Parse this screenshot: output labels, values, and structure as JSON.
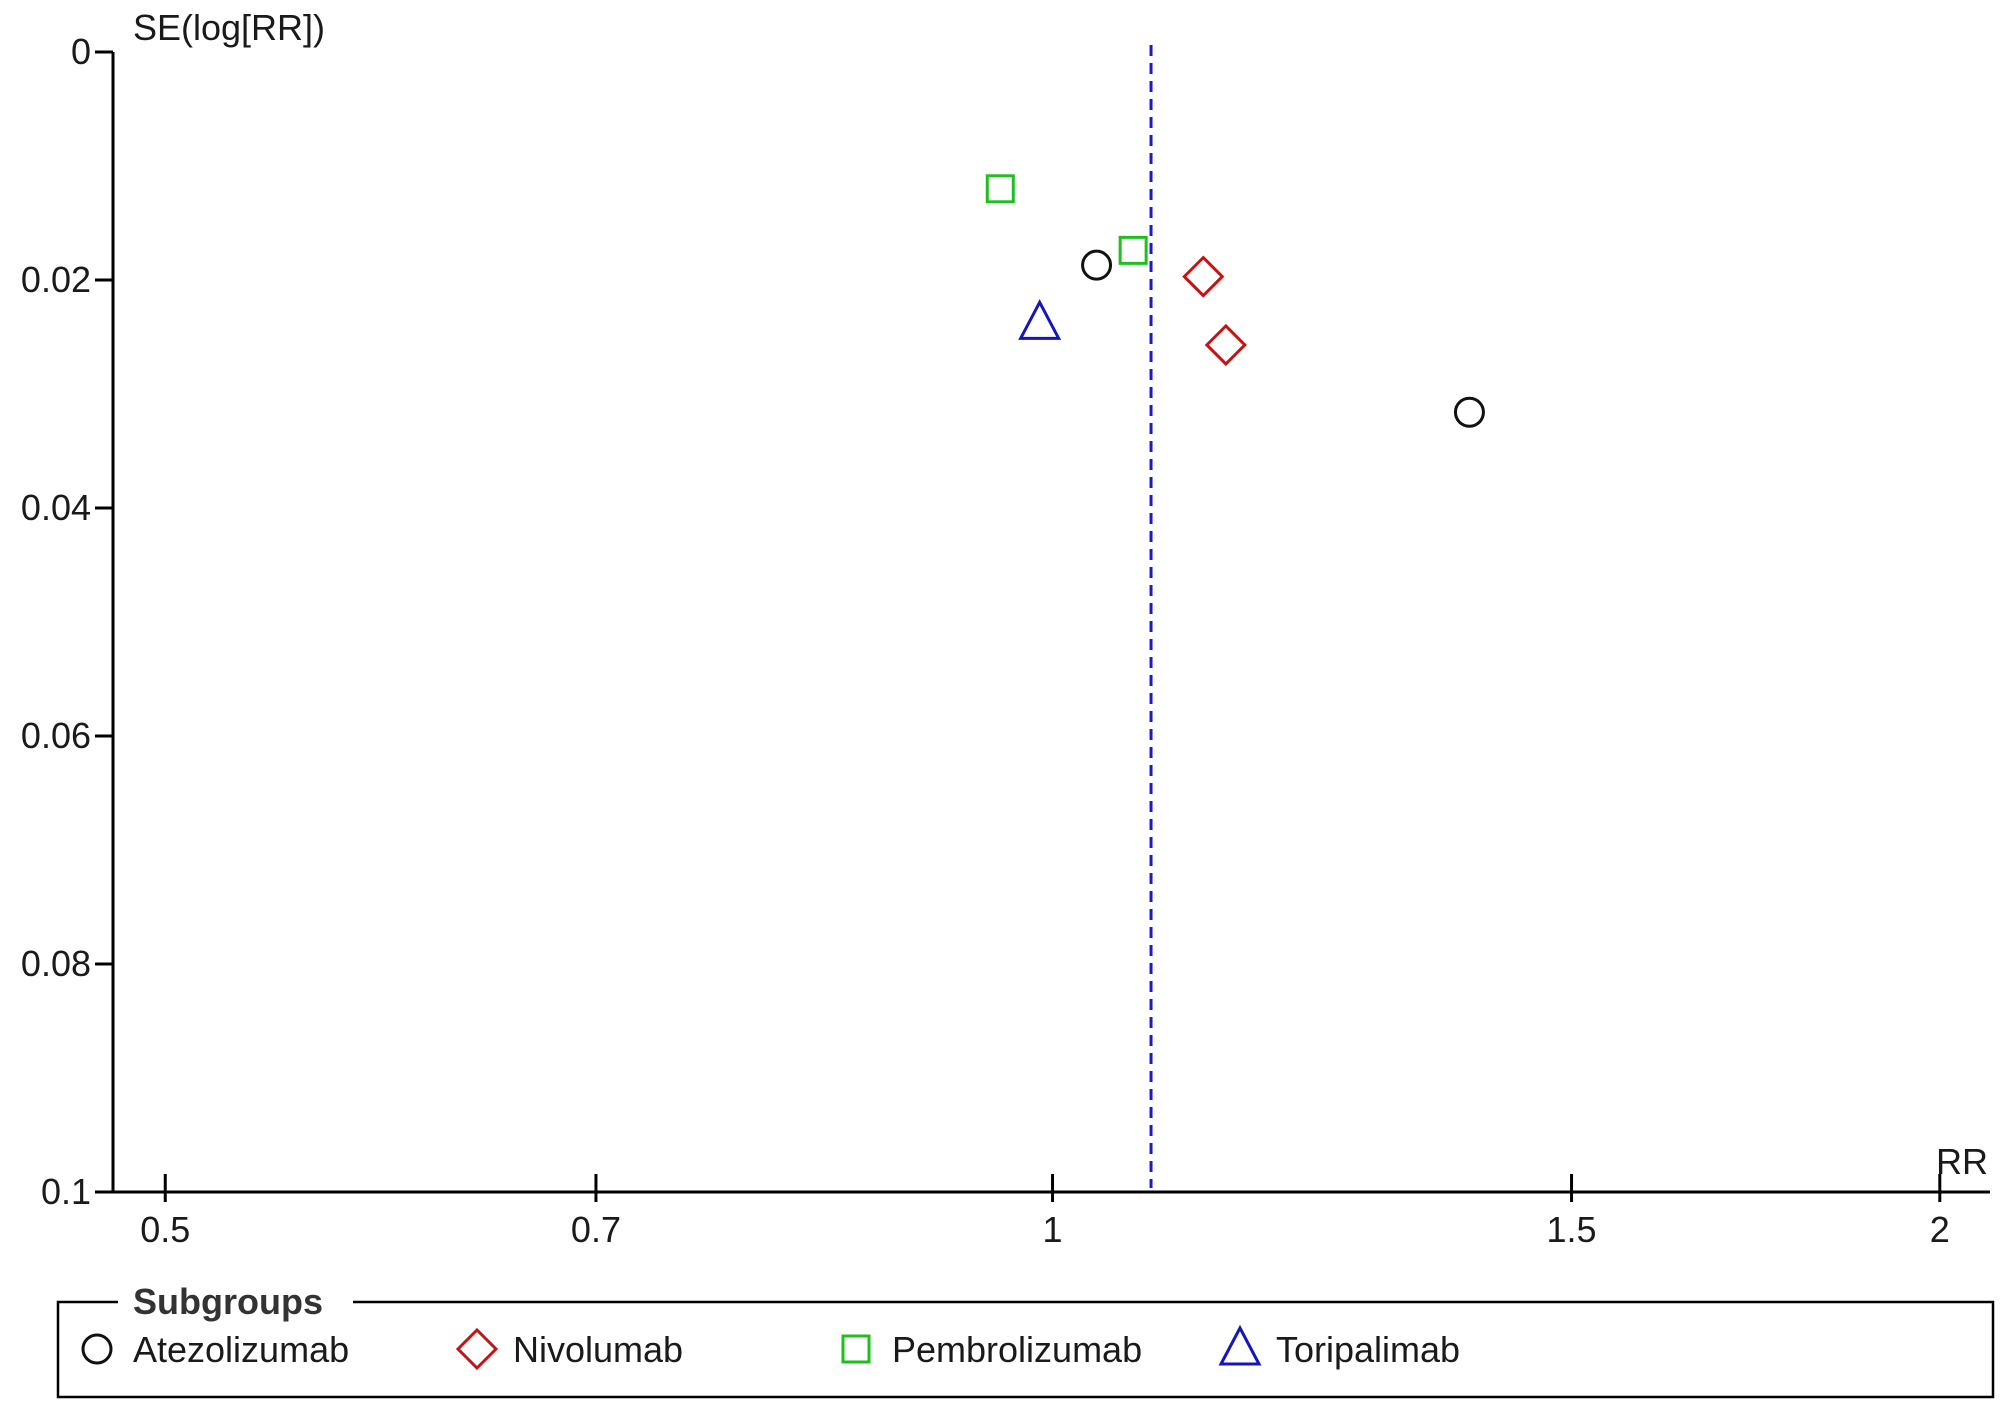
{
  "chart_data": {
    "type": "scatter",
    "plot_kind": "funnel plot",
    "xlabel": "RR",
    "ylabel": "SE(log[RR])",
    "x_scale": "log",
    "y_reversed": true,
    "xlim": [
      0.48,
      2.08
    ],
    "ylim": [
      0,
      0.1
    ],
    "x_ticks": [
      0.5,
      0.7,
      1,
      1.5,
      2
    ],
    "x_tick_labels": [
      "0.5",
      "0.7",
      "1",
      "1.5",
      "2"
    ],
    "y_ticks": [
      0,
      0.02,
      0.04,
      0.06,
      0.08,
      0.1
    ],
    "y_tick_labels": [
      "0",
      "0.02",
      "0.04",
      "0.06",
      "0.08",
      "0.1"
    ],
    "pooled_estimate_line": {
      "x": 1.08,
      "style": "dashed",
      "color": "#1a1acc"
    },
    "grid": false,
    "legend": {
      "title": "Subgroups",
      "placement": "bottom"
    },
    "series": [
      {
        "name": "Atezolizumab",
        "marker": "circle",
        "color": "#111111",
        "points": [
          {
            "x": 1.035,
            "y": 0.0187
          },
          {
            "x": 1.385,
            "y": 0.0316
          }
        ]
      },
      {
        "name": "Nivolumab",
        "marker": "diamond",
        "color": "#c01515",
        "points": [
          {
            "x": 1.125,
            "y": 0.0197
          },
          {
            "x": 1.145,
            "y": 0.0257
          }
        ]
      },
      {
        "name": "Pembrolizumab",
        "marker": "square",
        "color": "#1fbf1f",
        "points": [
          {
            "x": 0.96,
            "y": 0.012
          },
          {
            "x": 1.065,
            "y": 0.0174
          }
        ]
      },
      {
        "name": "Toripalimab",
        "marker": "triangle",
        "color": "#1515bb",
        "points": [
          {
            "x": 0.99,
            "y": 0.0238
          }
        ]
      }
    ]
  }
}
